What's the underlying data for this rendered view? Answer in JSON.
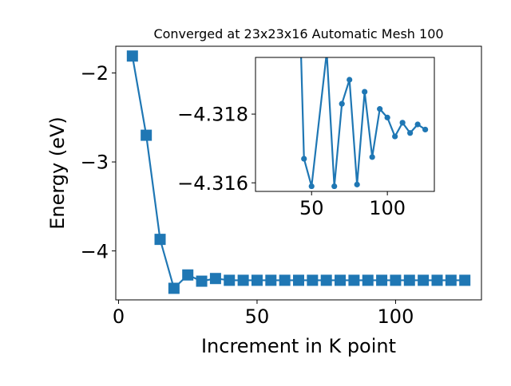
{
  "chart_data": [
    {
      "type": "line",
      "title": "Converged at 23x23x16 Automatic Mesh 100",
      "xlabel": "Increment in K point",
      "ylabel": "Energy (eV)",
      "xlim": [
        -1,
        131
      ],
      "ylim": [
        -4.55,
        -1.7
      ],
      "xticks": [
        0,
        50,
        100
      ],
      "yticks": [
        -2,
        -3,
        -4
      ],
      "xtick_labels": [
        "0",
        "50",
        "100"
      ],
      "ytick_labels": [
        "−2",
        "−3",
        "−4"
      ],
      "marker": "square",
      "grid": false,
      "series": [
        {
          "color": "#1f77b4",
          "x": [
            5,
            10,
            15,
            20,
            25,
            30,
            35,
            40,
            45,
            50,
            55,
            60,
            65,
            70,
            75,
            80,
            85,
            90,
            95,
            100,
            105,
            110,
            115,
            120,
            125
          ],
          "y": [
            -1.81,
            -2.7,
            -3.87,
            -4.42,
            -4.27,
            -4.34,
            -4.31,
            -4.33,
            -4.33,
            -4.33,
            -4.33,
            -4.33,
            -4.33,
            -4.33,
            -4.33,
            -4.33,
            -4.33,
            -4.33,
            -4.33,
            -4.33,
            -4.33,
            -4.33,
            -4.33,
            -4.33,
            -4.33
          ]
        }
      ]
    },
    {
      "type": "line",
      "title": "",
      "xlabel": "",
      "ylabel": "",
      "inset": true,
      "xlim": [
        13,
        131
      ],
      "ylim": [
        -4.31575,
        -4.31965
      ],
      "xticks": [
        50,
        100
      ],
      "yticks": [
        -4.318,
        -4.316
      ],
      "xtick_labels": [
        "50",
        "100"
      ],
      "ytick_labels": [
        "−4.318",
        "−4.316"
      ],
      "marker": "circle",
      "grid": false,
      "series": [
        {
          "color": "#1f77b4",
          "x": [
            45,
            50,
            65,
            70,
            75,
            80,
            85,
            90,
            95,
            100,
            105,
            110,
            115,
            120,
            125
          ],
          "y": [
            -4.3167,
            -4.3159,
            -4.3159,
            -4.3183,
            -4.319,
            -4.31595,
            -4.31865,
            -4.31675,
            -4.31815,
            -4.3179,
            -4.31735,
            -4.31775,
            -4.31745,
            -4.3177,
            -4.31755
          ],
          "y_offscale": [
            -4.3198,
            -4.3198
          ],
          "x_offscale": [
            43,
            60
          ]
        }
      ]
    }
  ]
}
